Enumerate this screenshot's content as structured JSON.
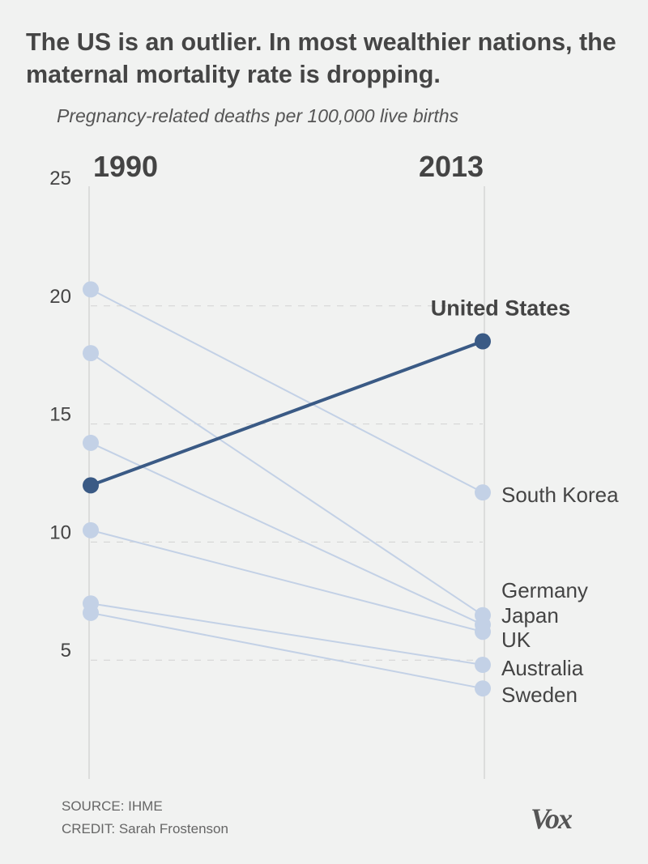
{
  "title": "The US is an outlier. In most wealthier nations, the maternal mortality rate is dropping.",
  "subtitle": "Pregnancy-related deaths per 100,000 live births",
  "source": "SOURCE: IHME",
  "credit": "CREDIT: Sarah Frostenson",
  "logo": "Vox",
  "colors": {
    "highlight": "#3a5a85",
    "other": "#c3d1e6",
    "axis": "#d6d6d6"
  },
  "chart_data": {
    "type": "line",
    "subtype": "slope",
    "categories": [
      "1990",
      "2013"
    ],
    "ylim": [
      0,
      25
    ],
    "yticks": [
      5,
      10,
      15,
      20,
      25
    ],
    "grid": "dashed horizontal",
    "series": [
      {
        "name": "United States",
        "values": [
          12.4,
          18.5
        ],
        "highlight": true
      },
      {
        "name": "South Korea",
        "values": [
          20.7,
          12.1
        ]
      },
      {
        "name": "Germany",
        "values": [
          18.0,
          6.9
        ]
      },
      {
        "name": "Japan",
        "values": [
          14.2,
          6.5
        ]
      },
      {
        "name": "UK",
        "values": [
          10.5,
          6.2
        ]
      },
      {
        "name": "Australia",
        "values": [
          7.4,
          4.8
        ]
      },
      {
        "name": "Sweden",
        "values": [
          7.0,
          3.8
        ]
      }
    ]
  }
}
